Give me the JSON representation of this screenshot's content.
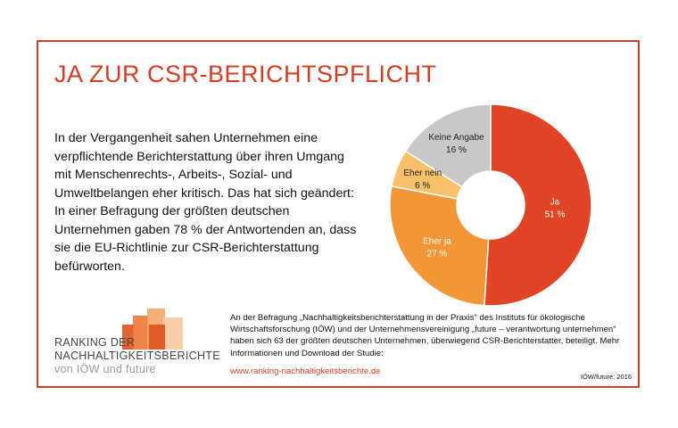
{
  "title": "JA ZUR CSR-BERICHTSPFLICHT",
  "intro_text": "In der Vergangenheit sahen Unternehmen eine verpflichtende Berichterstattung über ihren Umgang mit Menschenrechts-, Arbeits-, Sozial- und Umweltbelangen eher kritisch. Das hat sich geändert: In einer Befragung der größten deutschen Unternehmen gaben 78 % der Antwortenden an, dass sie die EU-Richtlinie zur CSR-Berichterstattung befürworten.",
  "chart_data": {
    "type": "pie",
    "variant": "donut",
    "start": "top",
    "direction": "clockwise",
    "categories": [
      "Ja",
      "Eher ja",
      "Eher nein",
      "Keine Angabe"
    ],
    "values": [
      51,
      27,
      6,
      16
    ],
    "unit": "%",
    "value_labels": [
      "51 %",
      "27 %",
      "6 %",
      "16 %"
    ],
    "colors": [
      "#df4424",
      "#f39638",
      "#f9c06a",
      "#c9c8c8"
    ],
    "label_colors": [
      "#ffffff",
      "#ffffff",
      "#222222",
      "#222222"
    ]
  },
  "logo": {
    "line1": "RANKING DER",
    "line2": "NACHHALTIGKEITSBERICHTE",
    "line3": "von IÖW und future",
    "colors": [
      "#f9c9a0",
      "#f5a66a",
      "#ee7b3b",
      "#e0541f"
    ]
  },
  "study_text": "An der Befragung „Nachhaltigkeitsberichterstattung in der Praxis“ des Instituts für ökologische Wirtschaftsforschung (IÖW) und der Unternehmensvereinigung „future – verantwortung unternehmen“ haben sich 63 der größten deutschen Unternehmen, überwiegend CSR-Berichterstatter, beteiligt. Mehr Informationen und Download der Studie:",
  "study_link": "www.ranking-nachhaltigkeitsberichte.de",
  "source": "IÖW/future; 2016",
  "accent_color": "#d43d21"
}
